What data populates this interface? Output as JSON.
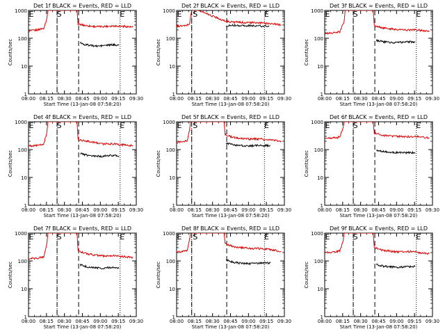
{
  "chart_data": [
    {
      "type": "line",
      "title": "Det 1f BLACK = Events, RED = LLD",
      "xlabel": "Start Time (13-Jan-08 07:58:20)",
      "ylabel": "Counts/sec",
      "yscale": "log",
      "ylim": [
        1,
        1000
      ],
      "xlim": [
        0,
        100
      ],
      "x_tick_labels": [
        "08:00",
        "08:15",
        "08:30",
        "08:45",
        "09:00",
        "09:15",
        "09:30"
      ],
      "y_tick_labels": [
        "1",
        "10",
        "100",
        "1000"
      ],
      "markers": [
        "S",
        "E"
      ],
      "dashed_at": [
        26.5,
        46.5
      ],
      "dotted_at": [
        26.5,
        85
      ],
      "series": [
        {
          "color": "#dd0000",
          "points": [
            [
              0,
              180
            ],
            [
              8,
              200
            ],
            [
              14,
              230
            ],
            [
              17,
              500
            ],
            [
              18,
              1000
            ],
            [
              45,
              1000
            ],
            [
              46,
              320
            ],
            [
              55,
              280
            ],
            [
              64,
              260
            ],
            [
              72,
              270
            ],
            [
              80,
              280
            ],
            [
              90,
              265
            ],
            [
              97,
              250
            ]
          ]
        },
        {
          "color": "#000000",
          "points": [
            [
              48,
              70
            ],
            [
              52,
              60
            ],
            [
              58,
              55
            ],
            [
              64,
              52
            ],
            [
              70,
              55
            ],
            [
              77,
              58
            ],
            [
              84,
              58
            ]
          ]
        }
      ]
    },
    {
      "type": "line",
      "title": "Det 2f BLACK = Events, RED = LLD",
      "xlabel": "Start Time (13-Jan-08 07:58:20)",
      "ylabel": "Counts/sec",
      "yscale": "log",
      "ylim": [
        1,
        1000
      ],
      "xlim": [
        0,
        100
      ],
      "x_tick_labels": [
        "08:00",
        "08:15",
        "08:30",
        "08:45",
        "09:00",
        "09:15",
        "09:30"
      ],
      "y_tick_labels": [
        "1",
        "10",
        "100",
        "1000"
      ],
      "markers": [
        "S",
        "E"
      ],
      "dashed_at": [
        14,
        46.5
      ],
      "dotted_at": [
        14,
        81.5
      ],
      "series": [
        {
          "color": "#dd0000",
          "points": [
            [
              0,
              270
            ],
            [
              8,
              280
            ],
            [
              12,
              330
            ],
            [
              13,
              600
            ],
            [
              14,
              1000
            ],
            [
              20,
              1000
            ],
            [
              25,
              850
            ],
            [
              32,
              650
            ],
            [
              38,
              550
            ],
            [
              42,
              450
            ],
            [
              47,
              400
            ],
            [
              54,
              380
            ],
            [
              62,
              370
            ],
            [
              72,
              360
            ],
            [
              82,
              350
            ],
            [
              90,
              330
            ],
            [
              97,
              300
            ]
          ]
        },
        {
          "color": "#000000",
          "points": [
            [
              46,
              280
            ],
            [
              52,
              295
            ],
            [
              60,
              290
            ],
            [
              70,
              280
            ],
            [
              80,
              275
            ],
            [
              86,
              275
            ]
          ]
        }
      ]
    },
    {
      "type": "line",
      "title": "Det 3f BLACK = Events, RED = LLD",
      "xlabel": "Start Time (13-Jan-08 07:58:20)",
      "ylabel": "Counts/sec",
      "yscale": "log",
      "ylim": [
        1,
        1000
      ],
      "xlim": [
        0,
        100
      ],
      "x_tick_labels": [
        "08:00",
        "08:15",
        "08:30",
        "08:45",
        "09:00",
        "09:15",
        "09:30"
      ],
      "y_tick_labels": [
        "1",
        "10",
        "100",
        "1000"
      ],
      "markers": [
        "S",
        "E"
      ],
      "dashed_at": [
        26.5,
        46.5
      ],
      "dotted_at": [
        26.5,
        85
      ],
      "series": [
        {
          "color": "#dd0000",
          "points": [
            [
              0,
              150
            ],
            [
              8,
              155
            ],
            [
              14,
              170
            ],
            [
              18,
              400
            ],
            [
              19,
              1000
            ],
            [
              45,
              1000
            ],
            [
              46,
              280
            ],
            [
              55,
              230
            ],
            [
              65,
              210
            ],
            [
              75,
              200
            ],
            [
              85,
              200
            ],
            [
              92,
              190
            ],
            [
              97,
              175
            ]
          ]
        },
        {
          "color": "#000000",
          "points": [
            [
              48,
              85
            ],
            [
              54,
              75
            ],
            [
              60,
              72
            ],
            [
              68,
              70
            ],
            [
              76,
              75
            ],
            [
              84,
              75
            ]
          ]
        }
      ]
    },
    {
      "type": "line",
      "title": "Det 4f BLACK = Events, RED = LLD",
      "xlabel": "Start Time (13-Jan-08 07:58:20)",
      "ylabel": "Counts/sec",
      "yscale": "log",
      "ylim": [
        1,
        1000
      ],
      "xlim": [
        0,
        100
      ],
      "x_tick_labels": [
        "08:00",
        "08:15",
        "08:30",
        "08:45",
        "09:00",
        "09:15",
        "09:30"
      ],
      "y_tick_labels": [
        "1",
        "10",
        "100",
        "1000"
      ],
      "markers": [
        "S",
        "E"
      ],
      "dashed_at": [
        26.5,
        46.5
      ],
      "dotted_at": [
        26.5,
        85
      ],
      "series": [
        {
          "color": "#dd0000",
          "points": [
            [
              0,
              135
            ],
            [
              8,
              140
            ],
            [
              14,
              160
            ],
            [
              17,
              400
            ],
            [
              18,
              1000
            ],
            [
              45,
              1000
            ],
            [
              46,
              230
            ],
            [
              55,
              200
            ],
            [
              62,
              180
            ],
            [
              70,
              160
            ],
            [
              78,
              160
            ],
            [
              86,
              150
            ],
            [
              97,
              140
            ]
          ]
        },
        {
          "color": "#000000",
          "points": [
            [
              48,
              75
            ],
            [
              53,
              65
            ],
            [
              60,
              60
            ],
            [
              68,
              58
            ],
            [
              76,
              62
            ],
            [
              84,
              60
            ]
          ]
        }
      ]
    },
    {
      "type": "line",
      "title": "Det 5f BLACK = Events, RED = LLD",
      "xlabel": "Start Time (13-Jan-08 07:58:20)",
      "ylabel": "Counts/sec",
      "yscale": "log",
      "ylim": [
        1,
        1000
      ],
      "xlim": [
        0,
        100
      ],
      "x_tick_labels": [
        "08:00",
        "08:15",
        "08:30",
        "08:45",
        "09:00",
        "09:15",
        "09:30"
      ],
      "y_tick_labels": [
        "1",
        "10",
        "100",
        "1000"
      ],
      "markers": [
        "S",
        "E"
      ],
      "dashed_at": [
        14,
        46.5
      ],
      "dotted_at": [
        14,
        81.5
      ],
      "series": [
        {
          "color": "#dd0000",
          "points": [
            [
              0,
              180
            ],
            [
              6,
              190
            ],
            [
              10,
              210
            ],
            [
              12,
              500
            ],
            [
              13,
              1000
            ],
            [
              44,
              1000
            ],
            [
              45,
              350
            ],
            [
              52,
              280
            ],
            [
              60,
              250
            ],
            [
              68,
              240
            ],
            [
              76,
              240
            ],
            [
              84,
              230
            ],
            [
              92,
              210
            ],
            [
              97,
              200
            ]
          ]
        },
        {
          "color": "#000000",
          "points": [
            [
              46,
              170
            ],
            [
              52,
              150
            ],
            [
              58,
              140
            ],
            [
              66,
              135
            ],
            [
              74,
              140
            ],
            [
              82,
              140
            ],
            [
              87,
              140
            ]
          ]
        }
      ]
    },
    {
      "type": "line",
      "title": "Det 6f BLACK = Events, RED = LLD",
      "xlabel": "Start Time (13-Jan-08 07:58:20)",
      "ylabel": "Counts/sec",
      "yscale": "log",
      "ylim": [
        1,
        1000
      ],
      "xlim": [
        0,
        100
      ],
      "x_tick_labels": [
        "08:00",
        "08:15",
        "08:30",
        "08:45",
        "09:00",
        "09:15",
        "09:30"
      ],
      "y_tick_labels": [
        "1",
        "10",
        "100",
        "1000"
      ],
      "markers": [
        "S",
        "E"
      ],
      "dashed_at": [
        26.5,
        46.5
      ],
      "dotted_at": [
        26.5,
        85
      ],
      "series": [
        {
          "color": "#dd0000",
          "points": [
            [
              0,
              250
            ],
            [
              8,
              260
            ],
            [
              14,
              280
            ],
            [
              17,
              600
            ],
            [
              18,
              1000
            ],
            [
              45,
              1000
            ],
            [
              46,
              400
            ],
            [
              55,
              320
            ],
            [
              65,
              300
            ],
            [
              75,
              290
            ],
            [
              85,
              300
            ],
            [
              92,
              280
            ],
            [
              97,
              260
            ]
          ]
        },
        {
          "color": "#000000",
          "points": [
            [
              48,
              95
            ],
            [
              54,
              85
            ],
            [
              60,
              80
            ],
            [
              68,
              78
            ],
            [
              76,
              78
            ],
            [
              84,
              78
            ]
          ]
        }
      ]
    },
    {
      "type": "line",
      "title": "Det 7f BLACK = Events, RED = LLD",
      "xlabel": "Start Time (13-Jan-08 07:58:20)",
      "ylabel": "Counts/sec",
      "yscale": "log",
      "ylim": [
        1,
        1000
      ],
      "xlim": [
        0,
        100
      ],
      "x_tick_labels": [
        "08:00",
        "08:15",
        "08:30",
        "08:45",
        "09:00",
        "09:15",
        "09:30"
      ],
      "y_tick_labels": [
        "1",
        "10",
        "100",
        "1000"
      ],
      "markers": [
        "S",
        "E"
      ],
      "dashed_at": [
        26.5,
        46.5
      ],
      "dotted_at": [
        26.5,
        85
      ],
      "series": [
        {
          "color": "#dd0000",
          "points": [
            [
              0,
              120
            ],
            [
              8,
              125
            ],
            [
              14,
              140
            ],
            [
              17,
              400
            ],
            [
              18,
              1000
            ],
            [
              45,
              1000
            ],
            [
              46,
              220
            ],
            [
              55,
              180
            ],
            [
              62,
              160
            ],
            [
              70,
              150
            ],
            [
              78,
              155
            ],
            [
              86,
              145
            ],
            [
              97,
              135
            ]
          ]
        },
        {
          "color": "#000000",
          "points": [
            [
              48,
              72
            ],
            [
              54,
              62
            ],
            [
              60,
              58
            ],
            [
              68,
              55
            ],
            [
              76,
              58
            ],
            [
              84,
              55
            ]
          ]
        }
      ]
    },
    {
      "type": "line",
      "title": "Det 8f BLACK = Events, RED = LLD",
      "xlabel": "Start Time (13-Jan-08 07:58:20)",
      "ylabel": "Counts/sec",
      "yscale": "log",
      "ylim": [
        1,
        1000
      ],
      "xlim": [
        0,
        100
      ],
      "x_tick_labels": [
        "08:00",
        "08:15",
        "08:30",
        "08:45",
        "09:00",
        "09:15",
        "09:30"
      ],
      "y_tick_labels": [
        "1",
        "10",
        "100",
        "1000"
      ],
      "markers": [
        "S",
        "E"
      ],
      "dashed_at": [
        14,
        46.5
      ],
      "dotted_at": [
        14,
        81.5
      ],
      "series": [
        {
          "color": "#dd0000",
          "points": [
            [
              0,
              210
            ],
            [
              6,
              220
            ],
            [
              10,
              240
            ],
            [
              12,
              600
            ],
            [
              13,
              1000
            ],
            [
              44,
              1000
            ],
            [
              45,
              420
            ],
            [
              52,
              330
            ],
            [
              60,
              300
            ],
            [
              68,
              280
            ],
            [
              76,
              280
            ],
            [
              84,
              270
            ],
            [
              92,
              240
            ],
            [
              97,
              220
            ]
          ]
        },
        {
          "color": "#000000",
          "points": [
            [
              46,
              110
            ],
            [
              52,
              90
            ],
            [
              58,
              85
            ],
            [
              66,
              80
            ],
            [
              74,
              82
            ],
            [
              82,
              85
            ],
            [
              87,
              85
            ]
          ]
        }
      ]
    },
    {
      "type": "line",
      "title": "Det 9f BLACK = Events, RED = LLD",
      "xlabel": "Start Time (13-Jan-08 07:58:20)",
      "ylabel": "Counts/sec",
      "yscale": "log",
      "ylim": [
        1,
        1000
      ],
      "xlim": [
        0,
        100
      ],
      "x_tick_labels": [
        "08:00",
        "08:15",
        "08:30",
        "08:45",
        "09:00",
        "09:15",
        "09:30"
      ],
      "y_tick_labels": [
        "1",
        "10",
        "100",
        "1000"
      ],
      "markers": [
        "S",
        "E"
      ],
      "dashed_at": [
        26.5,
        46.5
      ],
      "dotted_at": [
        26.5,
        85
      ],
      "series": [
        {
          "color": "#dd0000",
          "points": [
            [
              0,
              200
            ],
            [
              8,
              210
            ],
            [
              14,
              230
            ],
            [
              17,
              500
            ],
            [
              18,
              1000
            ],
            [
              45,
              1000
            ],
            [
              46,
              300
            ],
            [
              55,
              240
            ],
            [
              64,
              220
            ],
            [
              72,
              210
            ],
            [
              80,
              220
            ],
            [
              88,
              200
            ],
            [
              97,
              180
            ]
          ]
        },
        {
          "color": "#000000",
          "points": [
            [
              48,
              75
            ],
            [
              54,
              65
            ],
            [
              60,
              62
            ],
            [
              68,
              60
            ],
            [
              76,
              62
            ],
            [
              84,
              65
            ]
          ]
        }
      ]
    }
  ]
}
